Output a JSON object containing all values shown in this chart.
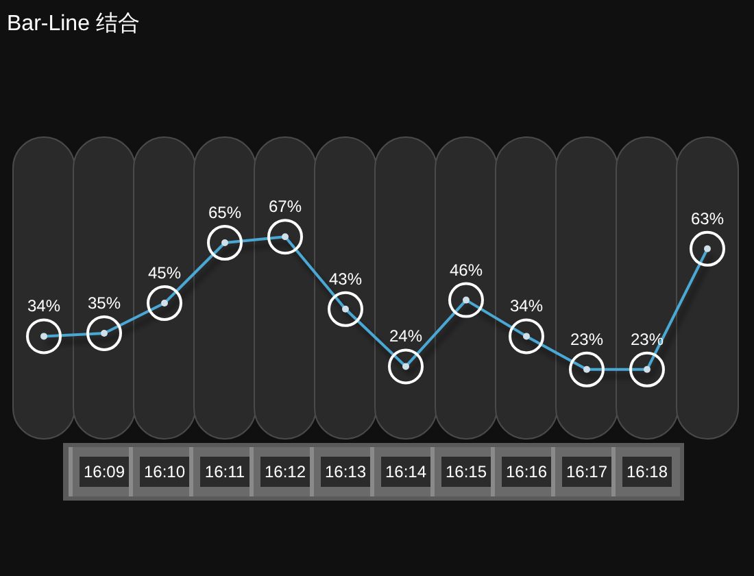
{
  "chart_data": {
    "type": "bar",
    "title": "Bar-Line 结合",
    "categories": [
      null,
      "16:09",
      "16:10",
      "16:11",
      "16:12",
      "16:13",
      "16:14",
      "16:15",
      "16:16",
      "16:17",
      "16:18",
      null
    ],
    "ylim": [
      0,
      100
    ],
    "tick_labels": "x",
    "marker": "circle",
    "series": [
      {
        "color": "#2a2a2a",
        "values": [
          100,
          100,
          100,
          100,
          100,
          100,
          100,
          100,
          100,
          100,
          100,
          100
        ]
      },
      {
        "type": "line",
        "color": "#4aa8d4",
        "values": [
          34,
          35,
          45,
          65,
          67,
          43,
          24,
          46,
          34,
          23,
          23,
          63
        ],
        "value_labels": [
          "34%",
          "35%",
          "45%",
          "65%",
          "67%",
          "43%",
          "24%",
          "46%",
          "34%",
          "23%",
          "23%",
          "63%"
        ]
      }
    ]
  }
}
